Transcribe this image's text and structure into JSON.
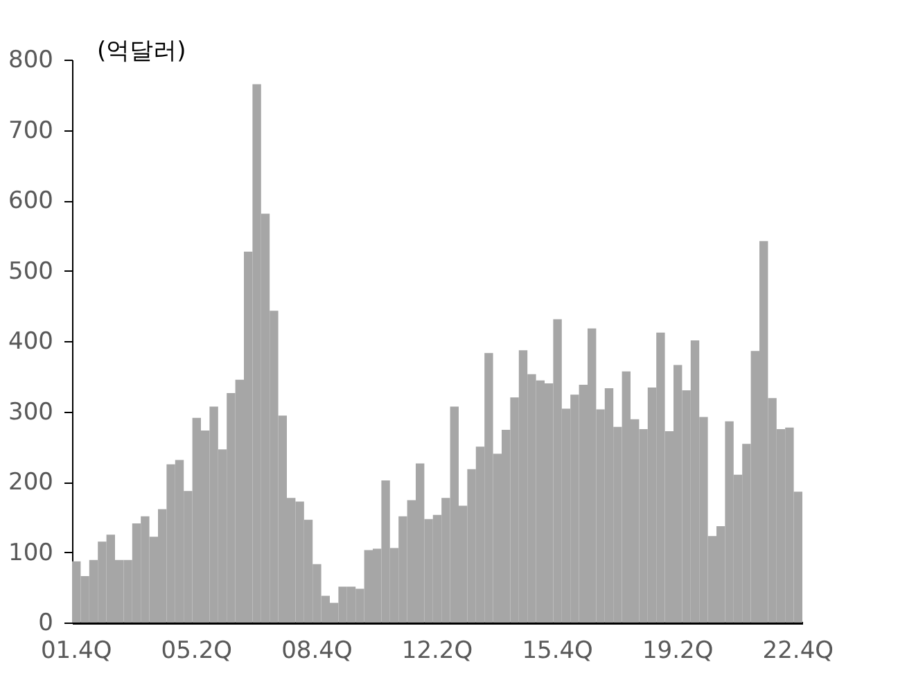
{
  "chart_data": {
    "type": "bar",
    "annotations": [
      "(억달러)"
    ],
    "categories": [
      "01.4Q",
      null,
      null,
      null,
      null,
      null,
      null,
      null,
      null,
      null,
      null,
      null,
      null,
      null,
      "05.2Q",
      null,
      null,
      null,
      null,
      null,
      null,
      null,
      null,
      null,
      null,
      null,
      null,
      null,
      "08.4Q",
      null,
      null,
      null,
      null,
      null,
      null,
      null,
      null,
      null,
      null,
      null,
      null,
      null,
      "12.2Q",
      null,
      null,
      null,
      null,
      null,
      null,
      null,
      null,
      null,
      null,
      null,
      null,
      null,
      "15.4Q",
      null,
      null,
      null,
      null,
      null,
      null,
      null,
      null,
      null,
      null,
      null,
      null,
      null,
      "19.2Q",
      null,
      null,
      null,
      null,
      null,
      null,
      null,
      null,
      null,
      null,
      null,
      null,
      null,
      "22.4Q"
    ],
    "values": [
      87,
      66,
      89,
      115,
      125,
      89,
      89,
      141,
      151,
      122,
      161,
      225,
      231,
      187,
      291,
      273,
      307,
      246,
      326,
      345,
      527,
      765,
      581,
      443,
      294,
      177,
      172,
      146,
      83,
      38,
      28,
      51,
      51,
      48,
      103,
      105,
      202,
      106,
      151,
      174,
      226,
      147,
      153,
      177,
      307,
      166,
      218,
      250,
      383,
      240,
      274,
      320,
      387,
      353,
      344,
      340,
      431,
      304,
      324,
      338,
      418,
      303,
      333,
      278,
      357,
      289,
      275,
      334,
      412,
      272,
      366,
      330,
      401,
      292,
      123,
      137,
      286,
      210,
      254,
      386,
      542,
      319,
      275,
      277,
      186
    ],
    "color": "#a6a6a6",
    "ylim": [
      0,
      800
    ],
    "yticks": [
      0,
      100,
      200,
      300,
      400,
      500,
      600,
      700,
      800
    ],
    "grid": false
  }
}
